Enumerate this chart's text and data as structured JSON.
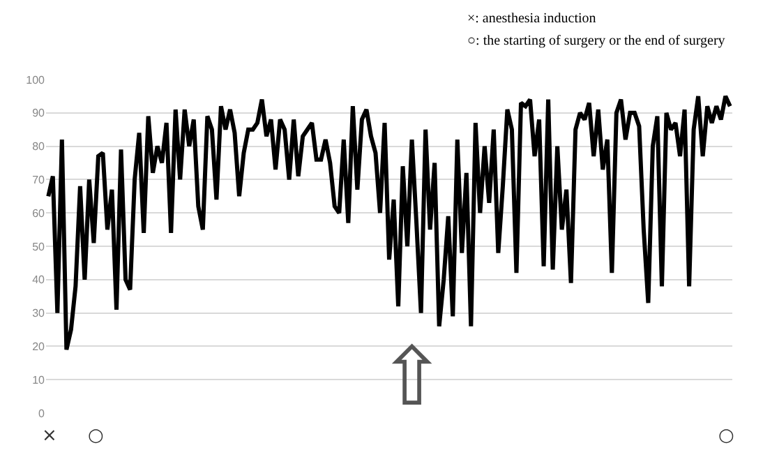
{
  "chart_data": {
    "type": "line",
    "categories": [
      null,
      null,
      null,
      null,
      null,
      null,
      null,
      null,
      null,
      null,
      null,
      null,
      null,
      null,
      null,
      null,
      null,
      null,
      null,
      null,
      null,
      null,
      null,
      null,
      null,
      null,
      null,
      null,
      null,
      null,
      null,
      null,
      null,
      null,
      null,
      null,
      null,
      null,
      null,
      null,
      null,
      null,
      null,
      null,
      null,
      null,
      null,
      null,
      null,
      null,
      null,
      null,
      null,
      null,
      null,
      null,
      null,
      null,
      null,
      null,
      null,
      null,
      null,
      null,
      null,
      null,
      null,
      null,
      null,
      null,
      null,
      null,
      null,
      null,
      null,
      null,
      null,
      null,
      null,
      null,
      null,
      null,
      null,
      null,
      null,
      null,
      null,
      null,
      null,
      null,
      null,
      null,
      null,
      null,
      null,
      null,
      null,
      null,
      null,
      null,
      null,
      null,
      null,
      null,
      null,
      null,
      null,
      null,
      null,
      null,
      null,
      null,
      null,
      null,
      null,
      null,
      null,
      null,
      null,
      null,
      null,
      null,
      null,
      null,
      null,
      null,
      null,
      null,
      null,
      null,
      null,
      null,
      null,
      null,
      null,
      null,
      null,
      null,
      null,
      null,
      null,
      null,
      null,
      null,
      null,
      null,
      null,
      null,
      null,
      null,
      null
    ],
    "series": [
      {
        "color": "#000000",
        "values": [
          65,
          71,
          30,
          82,
          19,
          25,
          38,
          68,
          40,
          70,
          51,
          77,
          78,
          55,
          67,
          31,
          79,
          40,
          37,
          70,
          84,
          54,
          89,
          72,
          80,
          75,
          87,
          54,
          91,
          70,
          91,
          80,
          88,
          62,
          55,
          89,
          85,
          64,
          92,
          85,
          91,
          84,
          65,
          78,
          85,
          85,
          87,
          94,
          83,
          88,
          73,
          88,
          85,
          70,
          88,
          71,
          83,
          85,
          87,
          76,
          76,
          82,
          75,
          62,
          60,
          82,
          57,
          92,
          67,
          88,
          91,
          83,
          78,
          60,
          87,
          46,
          64,
          32,
          74,
          50,
          82,
          57,
          30,
          85,
          55,
          75,
          26,
          40,
          59,
          29,
          82,
          48,
          72,
          26,
          87,
          60,
          80,
          63,
          85,
          48,
          68,
          91,
          85,
          42,
          93,
          92,
          94,
          77,
          88,
          44,
          94,
          43,
          80,
          55,
          67,
          39,
          85,
          90,
          88,
          93,
          77,
          91,
          73,
          82,
          42,
          90,
          94,
          82,
          90,
          90,
          86,
          55,
          33,
          80,
          89,
          38,
          90,
          85,
          87,
          77,
          91,
          38,
          85,
          95,
          77,
          92,
          87,
          92,
          88,
          95,
          92
        ]
      }
    ],
    "ylim": [
      0,
      100
    ],
    "yticks": [
      0,
      10,
      20,
      30,
      40,
      50,
      60,
      70,
      80,
      90,
      100
    ],
    "grid": "y",
    "tick_labels": "y",
    "marker": "none",
    "line_style": "solid",
    "legend": false,
    "annotations": [
      "×: anesthesia induction",
      "○: the starting of surgery or the end of surgery",
      "×",
      "○",
      "○",
      "⇧"
    ]
  }
}
